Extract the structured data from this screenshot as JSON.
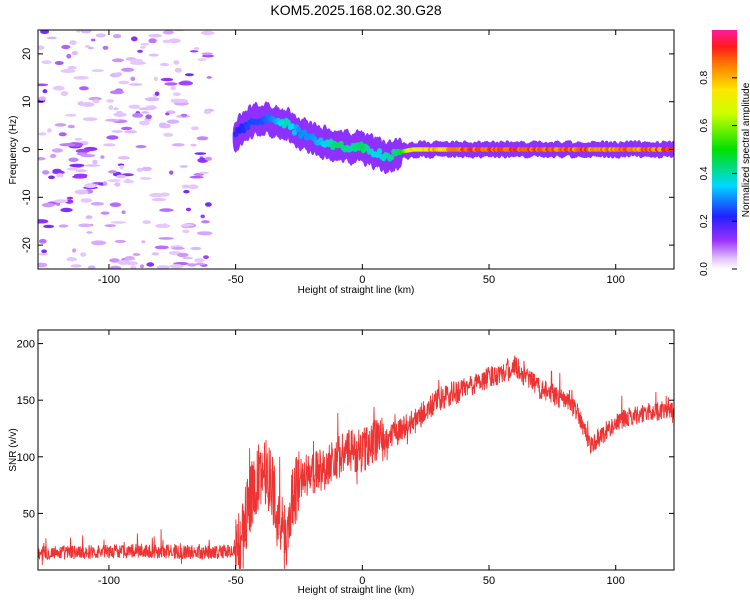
{
  "title": "KOM5.2025.168.02.30.G28",
  "chart_data": [
    {
      "type": "heatmap",
      "id": "spectrogram",
      "xlabel": "Height of straight line (km)",
      "ylabel": "Frequency (Hz)",
      "xlim": [
        -128,
        123
      ],
      "ylim": [
        -25,
        25
      ],
      "xticks": [
        -100,
        -50,
        0,
        50,
        100
      ],
      "xtick_labels": [
        "-100",
        "-50",
        "0",
        "50",
        "100"
      ],
      "yticks": [
        -20,
        -10,
        0,
        10,
        20
      ],
      "ytick_labels": [
        "-20",
        "-10",
        "0",
        "10",
        "20"
      ],
      "colorbar": {
        "label": "Normalized spectral amplitude",
        "range": [
          0,
          1
        ],
        "ticks": [
          0.0,
          0.2,
          0.4,
          0.6,
          0.8
        ],
        "tick_labels": [
          "0.0",
          "0.2",
          "0.4",
          "0.6",
          "0.8"
        ],
        "colormap": "rainbow (white-violet-blue-cyan-green-yellow-orange-red-magenta)"
      },
      "ridge": {
        "description": "dominant frequency ridge vs height",
        "x": [
          -50,
          -45,
          -40,
          -35,
          -30,
          -25,
          -20,
          -15,
          -10,
          -5,
          0,
          5,
          10,
          15,
          20,
          40,
          60,
          80,
          100,
          123
        ],
        "y": [
          3,
          5.5,
          6.5,
          6,
          5.5,
          3.5,
          2.5,
          1.5,
          0.8,
          0.5,
          0.5,
          -0.8,
          -1.5,
          -0.5,
          0,
          0,
          0,
          0,
          0,
          0
        ],
        "amplitude": [
          0.2,
          0.25,
          0.25,
          0.3,
          0.4,
          0.3,
          0.3,
          0.35,
          0.45,
          0.4,
          0.45,
          0.35,
          0.4,
          0.45,
          0.8,
          0.95,
          0.97,
          0.95,
          0.9,
          0.95
        ]
      },
      "noise_region_x": [
        -128,
        -60
      ]
    },
    {
      "type": "line",
      "id": "snr",
      "xlabel": "Height of straight line (km)",
      "ylabel": "SNR (v/v)",
      "xlim": [
        -128,
        123
      ],
      "ylim": [
        0,
        212
      ],
      "xticks": [
        -100,
        -50,
        0,
        50,
        100
      ],
      "xtick_labels": [
        "-100",
        "-50",
        "0",
        "50",
        "100"
      ],
      "yticks": [
        50,
        100,
        150,
        200
      ],
      "ytick_labels": [
        "50",
        "100",
        "150",
        "200"
      ],
      "color": "#ee3333",
      "series": [
        {
          "x": [
            -128,
            -110,
            -90,
            -70,
            -55,
            -50,
            -47,
            -45,
            -42,
            -40,
            -38,
            -35,
            -33,
            -30,
            -28,
            -25,
            -20,
            -15,
            -10,
            -5,
            0,
            5,
            10,
            15,
            20,
            25,
            30,
            35,
            40,
            45,
            50,
            55,
            60,
            65,
            70,
            75,
            80,
            85,
            90,
            95,
            100,
            105,
            110,
            115,
            123
          ],
          "values": [
            15,
            16,
            17,
            16,
            16,
            17,
            30,
            60,
            75,
            85,
            90,
            70,
            40,
            25,
            60,
            80,
            85,
            90,
            100,
            105,
            105,
            115,
            115,
            125,
            130,
            140,
            150,
            155,
            160,
            165,
            170,
            175,
            180,
            170,
            160,
            155,
            150,
            140,
            110,
            120,
            130,
            135,
            138,
            140,
            142
          ]
        }
      ]
    }
  ]
}
